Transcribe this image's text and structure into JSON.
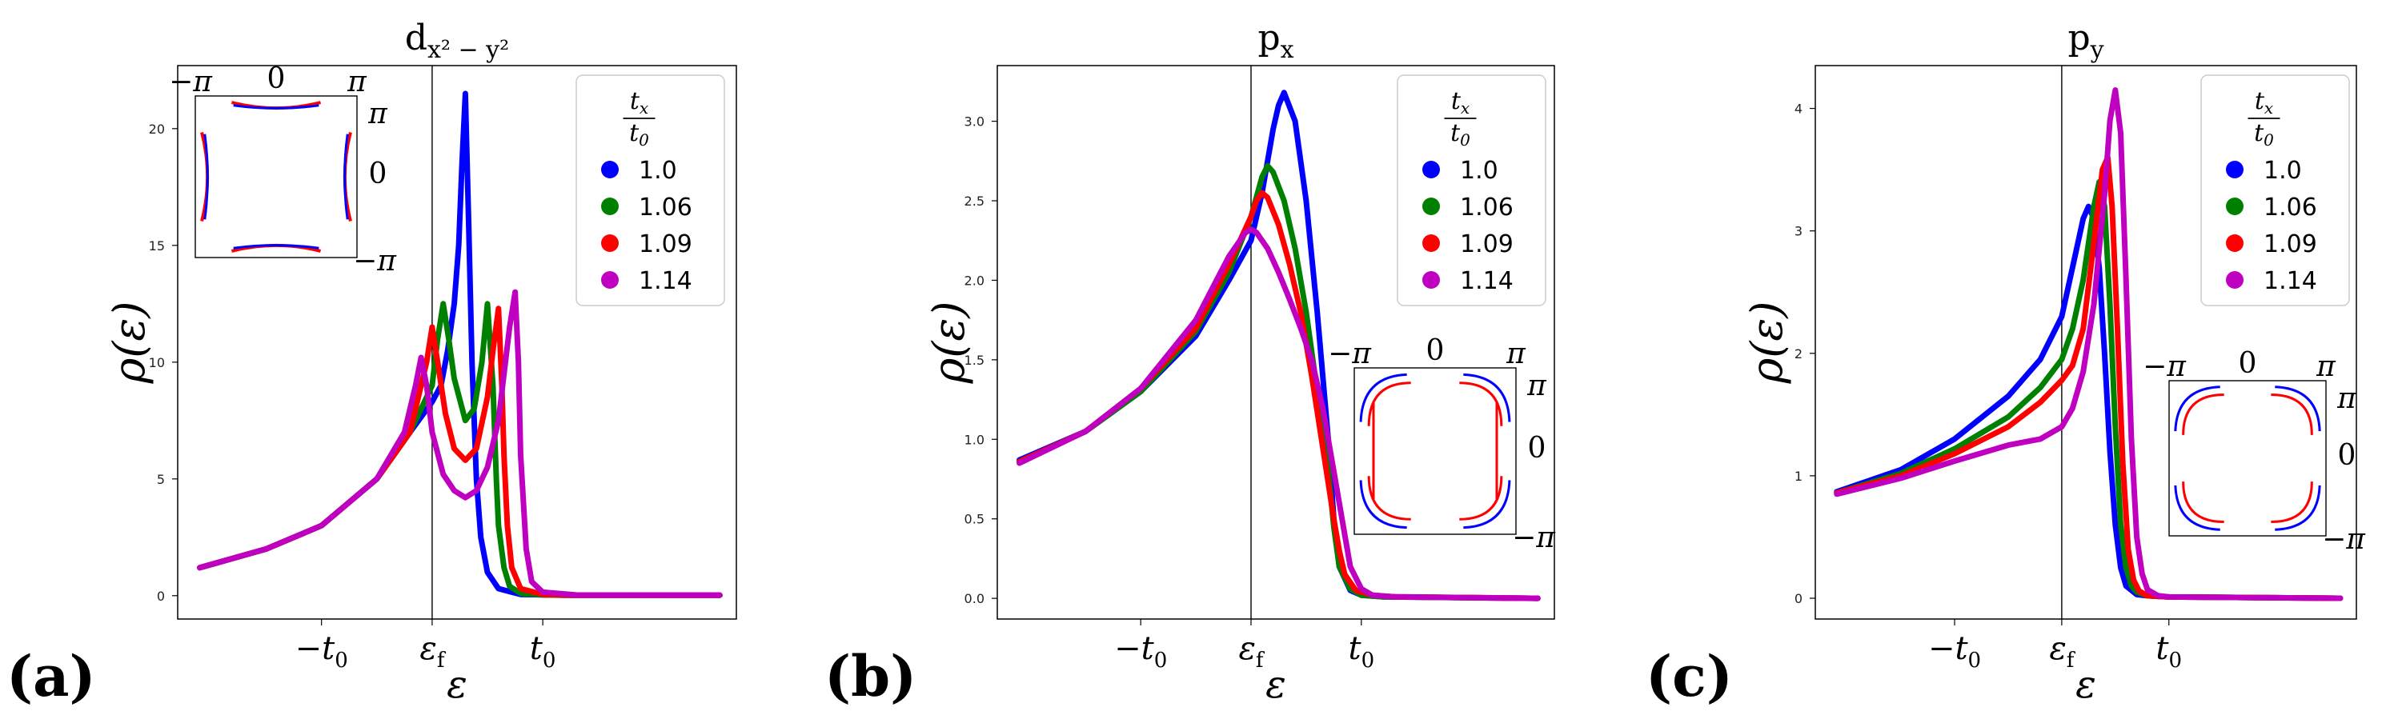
{
  "figure": {
    "panel_labels": [
      "(a)",
      "(b)",
      "(c)"
    ]
  },
  "chart_data": [
    {
      "type": "line",
      "panel": "(a)",
      "title": "d_{x²−y²}",
      "title_main": "d",
      "title_sub": "x² − y²",
      "xlabel": "ε",
      "ylabel": "ρ(ε)",
      "xlim": [
        -2.3,
        2.75
      ],
      "ylim": [
        -1.0,
        22.7
      ],
      "yticks": [
        0,
        5,
        10,
        15,
        20
      ],
      "xticks": [
        {
          "value": -1.0,
          "label": "−t",
          "sub": "0"
        },
        {
          "value": 0.0,
          "label": "ε",
          "sub": "f"
        },
        {
          "value": 1.0,
          "label": "t",
          "sub": "0"
        }
      ],
      "vline": 0.0,
      "legend": {
        "title": "t_x/t_0",
        "title_num": "t",
        "title_num_sub": "x",
        "title_den": "t",
        "title_den_sub": "0",
        "position": "upper right"
      },
      "series": [
        {
          "name": "1.0",
          "color": "#0000ff",
          "x": [
            -2.1,
            -1.5,
            -1.0,
            -0.5,
            -0.2,
            0.0,
            0.08,
            0.14,
            0.2,
            0.24,
            0.27,
            0.3,
            0.33,
            0.36,
            0.4,
            0.44,
            0.5,
            0.6,
            0.8,
            1.2,
            2.6
          ],
          "y": [
            1.2,
            2.0,
            3.0,
            5.0,
            7.0,
            8.3,
            9.0,
            10.5,
            12.5,
            15.0,
            18.5,
            21.5,
            16.0,
            10.0,
            5.0,
            2.5,
            1.0,
            0.3,
            0.05,
            0.02,
            0.02
          ]
        },
        {
          "name": "1.06",
          "color": "#008000",
          "x": [
            -2.1,
            -1.5,
            -1.0,
            -0.5,
            -0.2,
            0.0,
            0.05,
            0.1,
            0.15,
            0.2,
            0.3,
            0.38,
            0.45,
            0.5,
            0.55,
            0.58,
            0.6,
            0.65,
            0.7,
            0.8,
            1.0,
            1.3,
            2.6
          ],
          "y": [
            1.2,
            2.0,
            3.0,
            5.0,
            7.0,
            9.0,
            11.0,
            12.5,
            11.0,
            9.3,
            7.5,
            8.0,
            10.0,
            12.5,
            9.0,
            5.0,
            3.0,
            1.2,
            0.4,
            0.1,
            0.03,
            0.02,
            0.02
          ]
        },
        {
          "name": "1.09",
          "color": "#ff0000",
          "x": [
            -2.1,
            -1.5,
            -1.0,
            -0.5,
            -0.2,
            -0.05,
            0.0,
            0.05,
            0.12,
            0.2,
            0.3,
            0.4,
            0.5,
            0.55,
            0.6,
            0.63,
            0.65,
            0.68,
            0.72,
            0.8,
            1.0,
            1.3,
            2.6
          ],
          "y": [
            1.2,
            2.0,
            3.0,
            5.0,
            7.0,
            10.0,
            11.5,
            10.0,
            7.8,
            6.3,
            5.8,
            6.3,
            8.5,
            10.5,
            12.3,
            9.0,
            6.0,
            3.0,
            1.2,
            0.3,
            0.05,
            0.02,
            0.02
          ]
        },
        {
          "name": "1.14",
          "color": "#c000c0",
          "x": [
            -2.1,
            -1.5,
            -1.0,
            -0.5,
            -0.25,
            -0.15,
            -0.1,
            -0.05,
            0.0,
            0.1,
            0.2,
            0.3,
            0.4,
            0.5,
            0.6,
            0.65,
            0.7,
            0.75,
            0.78,
            0.8,
            0.85,
            0.9,
            1.0,
            1.3,
            2.6
          ],
          "y": [
            1.2,
            2.0,
            3.0,
            5.0,
            7.0,
            9.0,
            10.2,
            9.0,
            7.0,
            5.2,
            4.5,
            4.2,
            4.5,
            5.5,
            7.5,
            9.5,
            11.5,
            13.0,
            10.0,
            6.0,
            2.0,
            0.6,
            0.15,
            0.03,
            0.02
          ]
        }
      ],
      "inset": {
        "position": "top-left",
        "corner_labels": {
          "top_left": "−π",
          "top_mid": "0",
          "top_right": "π",
          "right_top": "π",
          "right_mid": "0",
          "right_bottom": "−π"
        }
      }
    },
    {
      "type": "line",
      "panel": "(b)",
      "title": "p_x",
      "title_main": "p",
      "title_sub": "x",
      "xlabel": "ε",
      "ylabel": "ρ(ε)",
      "xlim": [
        -2.3,
        2.75
      ],
      "ylim": [
        -0.13,
        3.35
      ],
      "yticks": [
        0.0,
        0.5,
        1.0,
        1.5,
        2.0,
        2.5,
        3.0
      ],
      "xticks": [
        {
          "value": -1.0,
          "label": "−t",
          "sub": "0"
        },
        {
          "value": 0.0,
          "label": "ε",
          "sub": "f"
        },
        {
          "value": 1.0,
          "label": "t",
          "sub": "0"
        }
      ],
      "vline": 0.0,
      "legend": {
        "title": "t_x/t_0",
        "title_num": "t",
        "title_num_sub": "x",
        "title_den": "t",
        "title_den_sub": "0",
        "position": "upper right"
      },
      "series": [
        {
          "name": "1.0",
          "color": "#0000ff",
          "x": [
            -2.1,
            -1.5,
            -1.0,
            -0.5,
            -0.2,
            0.0,
            0.1,
            0.2,
            0.25,
            0.3,
            0.4,
            0.5,
            0.6,
            0.7,
            0.75,
            0.8,
            0.9,
            1.0,
            1.2,
            2.6
          ],
          "y": [
            0.87,
            1.05,
            1.3,
            1.65,
            2.0,
            2.25,
            2.55,
            2.95,
            3.1,
            3.18,
            3.0,
            2.5,
            1.8,
            1.0,
            0.5,
            0.2,
            0.05,
            0.02,
            0.01,
            0.0
          ]
        },
        {
          "name": "1.06",
          "color": "#008000",
          "x": [
            -2.1,
            -1.5,
            -1.0,
            -0.5,
            -0.2,
            0.0,
            0.1,
            0.15,
            0.2,
            0.3,
            0.4,
            0.5,
            0.6,
            0.7,
            0.75,
            0.8,
            0.9,
            1.0,
            1.2,
            2.6
          ],
          "y": [
            0.86,
            1.05,
            1.3,
            1.68,
            2.05,
            2.4,
            2.65,
            2.72,
            2.68,
            2.5,
            2.2,
            1.8,
            1.3,
            0.8,
            0.45,
            0.2,
            0.06,
            0.02,
            0.01,
            0.0
          ]
        },
        {
          "name": "1.09",
          "color": "#ff0000",
          "x": [
            -2.1,
            -1.5,
            -1.0,
            -0.5,
            -0.2,
            0.0,
            0.05,
            0.1,
            0.15,
            0.25,
            0.35,
            0.45,
            0.55,
            0.65,
            0.75,
            0.8,
            0.85,
            0.95,
            1.1,
            1.3,
            2.6
          ],
          "y": [
            0.86,
            1.05,
            1.32,
            1.7,
            2.1,
            2.4,
            2.5,
            2.55,
            2.52,
            2.35,
            2.1,
            1.8,
            1.4,
            0.95,
            0.5,
            0.3,
            0.15,
            0.05,
            0.02,
            0.01,
            0.0
          ]
        },
        {
          "name": "1.14",
          "color": "#c000c0",
          "x": [
            -2.1,
            -1.5,
            -1.0,
            -0.5,
            -0.2,
            -0.05,
            0.0,
            0.05,
            0.15,
            0.25,
            0.35,
            0.45,
            0.55,
            0.65,
            0.75,
            0.85,
            0.9,
            1.0,
            1.1,
            1.3,
            2.6
          ],
          "y": [
            0.85,
            1.05,
            1.32,
            1.75,
            2.15,
            2.3,
            2.32,
            2.3,
            2.2,
            2.05,
            1.88,
            1.7,
            1.5,
            1.2,
            0.8,
            0.4,
            0.2,
            0.06,
            0.02,
            0.01,
            0.0
          ]
        }
      ],
      "inset": {
        "position": "middle-right",
        "corner_labels": {
          "top_left": "−π",
          "top_mid": "0",
          "top_right": "π",
          "right_top": "π",
          "right_mid": "0",
          "right_bottom": "−π"
        }
      }
    },
    {
      "type": "line",
      "panel": "(c)",
      "title": "p_y",
      "title_main": "p",
      "title_sub": "y",
      "xlabel": "ε",
      "ylabel": "ρ(ε)",
      "xlim": [
        -2.3,
        2.75
      ],
      "ylim": [
        -0.17,
        4.35
      ],
      "yticks": [
        0,
        1,
        2,
        3,
        4
      ],
      "xticks": [
        {
          "value": -1.0,
          "label": "−t",
          "sub": "0"
        },
        {
          "value": 0.0,
          "label": "ε",
          "sub": "f"
        },
        {
          "value": 1.0,
          "label": "t",
          "sub": "0"
        }
      ],
      "vline": 0.0,
      "legend": {
        "title": "t_x/t_0",
        "title_num": "t",
        "title_num_sub": "x",
        "title_den": "t",
        "title_den_sub": "0",
        "position": "upper right"
      },
      "series": [
        {
          "name": "1.0",
          "color": "#0000ff",
          "x": [
            -2.1,
            -1.5,
            -1.0,
            -0.5,
            -0.2,
            0.0,
            0.1,
            0.2,
            0.25,
            0.3,
            0.35,
            0.4,
            0.45,
            0.5,
            0.55,
            0.6,
            0.7,
            0.8,
            1.0,
            2.6
          ],
          "y": [
            0.87,
            1.05,
            1.3,
            1.65,
            1.95,
            2.3,
            2.7,
            3.1,
            3.2,
            3.1,
            2.7,
            2.0,
            1.2,
            0.6,
            0.25,
            0.1,
            0.03,
            0.02,
            0.01,
            0.0
          ]
        },
        {
          "name": "1.06",
          "color": "#008000",
          "x": [
            -2.1,
            -1.5,
            -1.0,
            -0.5,
            -0.2,
            0.0,
            0.1,
            0.2,
            0.3,
            0.35,
            0.4,
            0.45,
            0.5,
            0.55,
            0.6,
            0.65,
            0.7,
            0.8,
            1.0,
            2.6
          ],
          "y": [
            0.86,
            1.02,
            1.22,
            1.48,
            1.72,
            1.95,
            2.2,
            2.6,
            3.2,
            3.4,
            3.2,
            2.4,
            1.4,
            0.6,
            0.25,
            0.1,
            0.05,
            0.02,
            0.01,
            0.0
          ]
        },
        {
          "name": "1.09",
          "color": "#ff0000",
          "x": [
            -2.1,
            -1.5,
            -1.0,
            -0.5,
            -0.2,
            0.0,
            0.1,
            0.2,
            0.3,
            0.38,
            0.43,
            0.47,
            0.52,
            0.57,
            0.62,
            0.67,
            0.72,
            0.8,
            1.0,
            2.6
          ],
          "y": [
            0.86,
            1.0,
            1.18,
            1.4,
            1.6,
            1.78,
            1.9,
            2.2,
            2.9,
            3.5,
            3.6,
            3.2,
            2.2,
            1.1,
            0.4,
            0.15,
            0.06,
            0.02,
            0.01,
            0.0
          ]
        },
        {
          "name": "1.14",
          "color": "#c000c0",
          "x": [
            -2.1,
            -1.5,
            -1.0,
            -0.5,
            -0.2,
            0.0,
            0.1,
            0.2,
            0.3,
            0.4,
            0.45,
            0.5,
            0.55,
            0.6,
            0.65,
            0.7,
            0.75,
            0.8,
            0.9,
            1.0,
            2.6
          ],
          "y": [
            0.85,
            0.98,
            1.12,
            1.25,
            1.3,
            1.4,
            1.55,
            1.85,
            2.4,
            3.3,
            3.9,
            4.15,
            3.8,
            2.6,
            1.3,
            0.5,
            0.2,
            0.07,
            0.02,
            0.01,
            0.0
          ]
        }
      ],
      "inset": {
        "position": "middle-right",
        "corner_labels": {
          "top_left": "−π",
          "top_mid": "0",
          "top_right": "π",
          "right_top": "π",
          "right_mid": "0",
          "right_bottom": "−π"
        }
      }
    }
  ]
}
